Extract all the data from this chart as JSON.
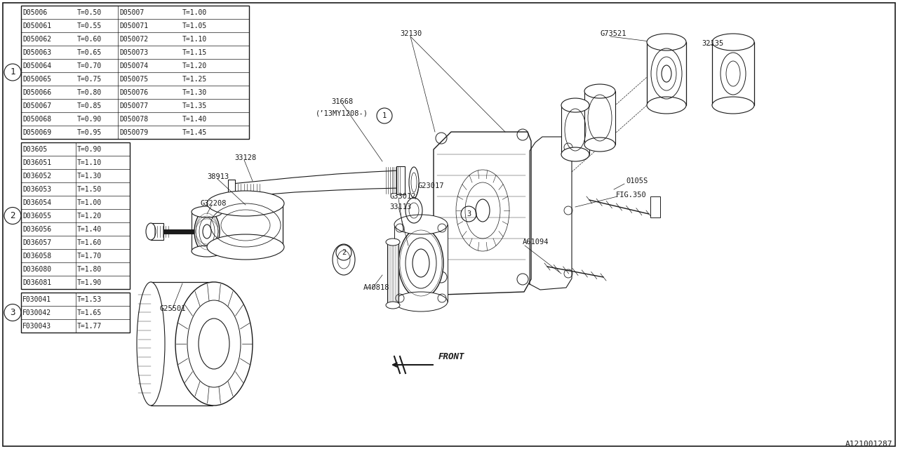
{
  "bg_color": "#ffffff",
  "line_color": "#1a1a1a",
  "part_id": "A121001287",
  "table1": {
    "circle_label": "1",
    "rows_left": [
      [
        "D05006",
        "T=0.50"
      ],
      [
        "D050061",
        "T=0.55"
      ],
      [
        "D050062",
        "T=0.60"
      ],
      [
        "D050063",
        "T=0.65"
      ],
      [
        "D050064",
        "T=0.70"
      ],
      [
        "D050065",
        "T=0.75"
      ],
      [
        "D050066",
        "T=0.80"
      ],
      [
        "D050067",
        "T=0.85"
      ],
      [
        "D050068",
        "T=0.90"
      ],
      [
        "D050069",
        "T=0.95"
      ]
    ],
    "rows_right": [
      [
        "D05007",
        "T=1.00"
      ],
      [
        "D050071",
        "T=1.05"
      ],
      [
        "D050072",
        "T=1.10"
      ],
      [
        "D050073",
        "T=1.15"
      ],
      [
        "D050074",
        "T=1.20"
      ],
      [
        "D050075",
        "T=1.25"
      ],
      [
        "D050076",
        "T=1.30"
      ],
      [
        "D050077",
        "T=1.35"
      ],
      [
        "D050078",
        "T=1.40"
      ],
      [
        "D050079",
        "T=1.45"
      ]
    ]
  },
  "table2": {
    "circle_label": "2",
    "rows": [
      [
        "D03605",
        "T=0.90"
      ],
      [
        "D036051",
        "T=1.10"
      ],
      [
        "D036052",
        "T=1.30"
      ],
      [
        "D036053",
        "T=1.50"
      ],
      [
        "D036054",
        "T=1.00"
      ],
      [
        "D036055",
        "T=1.20"
      ],
      [
        "D036056",
        "T=1.40"
      ],
      [
        "D036057",
        "T=1.60"
      ],
      [
        "D036058",
        "T=1.70"
      ],
      [
        "D036080",
        "T=1.80"
      ],
      [
        "D036081",
        "T=1.90"
      ]
    ]
  },
  "table3": {
    "circle_label": "3",
    "rows": [
      [
        "F030041",
        "T=1.53"
      ],
      [
        "F030042",
        "T=1.65"
      ],
      [
        "F030043",
        "T=1.77"
      ]
    ]
  }
}
